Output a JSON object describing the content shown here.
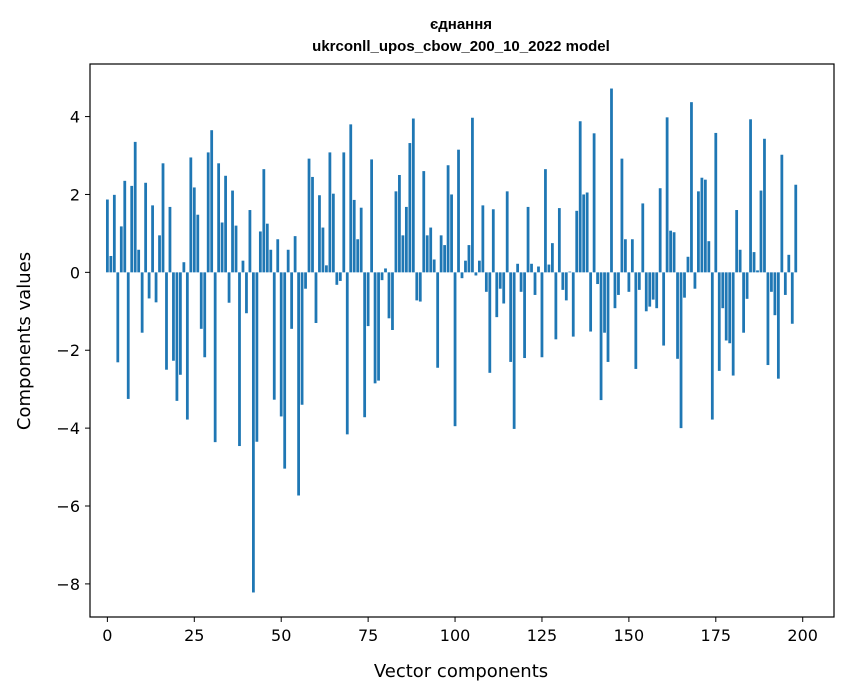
{
  "chart_data": {
    "type": "bar",
    "title_line1": "єднання",
    "title_line2": "ukrconll_upos_cbow_200_10_2022 model",
    "xlabel": "Vector components",
    "ylabel": "Components values",
    "xlim": [
      -5,
      209
    ],
    "ylim": [
      -8.85,
      5.35
    ],
    "xticks": [
      0,
      25,
      50,
      75,
      100,
      125,
      150,
      175,
      200
    ],
    "yticks": [
      -8,
      -6,
      -4,
      -2,
      0,
      2,
      4
    ],
    "ytick_labels": [
      "−8",
      "−6",
      "−4",
      "−2",
      "0",
      "2",
      "4"
    ],
    "bar_color": "#1f77b4",
    "grid": false,
    "values": [
      1.87,
      0.42,
      1.99,
      -2.31,
      1.18,
      2.35,
      -3.25,
      2.22,
      3.35,
      0.58,
      -1.55,
      2.3,
      -0.67,
      1.72,
      -0.77,
      0.95,
      2.8,
      -2.5,
      1.68,
      -2.27,
      -3.3,
      -2.63,
      0.26,
      -3.78,
      2.95,
      2.18,
      1.48,
      -1.45,
      -2.18,
      3.08,
      3.65,
      -4.36,
      2.8,
      1.28,
      2.48,
      -0.78,
      2.1,
      1.2,
      -4.46,
      0.3,
      -1.05,
      1.6,
      -8.22,
      -4.35,
      1.05,
      2.65,
      1.25,
      0.58,
      -3.27,
      0.85,
      -3.7,
      -5.04,
      0.58,
      -1.45,
      0.93,
      -5.73,
      -3.4,
      -0.42,
      2.92,
      2.45,
      -1.3,
      1.98,
      1.15,
      0.18,
      3.08,
      2.02,
      -0.32,
      -0.22,
      3.08,
      -4.16,
      3.8,
      1.86,
      0.85,
      1.66,
      -3.72,
      -1.38,
      2.9,
      -2.85,
      -2.78,
      -0.2,
      0.1,
      -1.18,
      -1.48,
      2.08,
      2.5,
      0.95,
      1.68,
      3.32,
      3.95,
      -0.72,
      -0.75,
      2.6,
      0.95,
      1.15,
      0.33,
      -2.45,
      0.95,
      0.7,
      2.75,
      2.0,
      -3.95,
      3.15,
      -0.15,
      0.3,
      0.7,
      3.97,
      -0.08,
      0.3,
      1.72,
      -0.5,
      -2.58,
      1.62,
      -1.15,
      -0.42,
      -0.8,
      2.08,
      -2.3,
      -4.02,
      0.22,
      -0.5,
      -2.2,
      1.68,
      0.22,
      -0.58,
      0.15,
      -2.18,
      2.65,
      0.2,
      0.75,
      -1.72,
      1.65,
      -0.45,
      -0.72,
      0.02,
      -1.65,
      1.58,
      3.88,
      2.0,
      2.05,
      -1.52,
      3.57,
      -0.3,
      -3.28,
      -1.55,
      -2.3,
      4.72,
      -0.92,
      -0.58,
      2.92,
      0.85,
      -0.5,
      0.85,
      -2.48,
      -0.45,
      1.77,
      -1.0,
      -0.88,
      -0.7,
      -0.92,
      2.16,
      -1.88,
      3.98,
      1.07,
      1.03,
      -2.22,
      -4.0,
      -0.65,
      0.4,
      4.37,
      -0.42,
      2.08,
      2.43,
      2.38,
      0.8,
      -3.78,
      3.58,
      -2.53,
      -0.92,
      -1.75,
      -1.82,
      -2.65,
      1.6,
      0.58,
      -1.55,
      -0.68,
      3.93,
      0.52,
      0.05,
      2.1,
      3.43,
      -2.38,
      -0.5,
      -1.1,
      -2.73,
      3.02,
      -0.58,
      0.45,
      -1.32,
      2.25
    ]
  }
}
